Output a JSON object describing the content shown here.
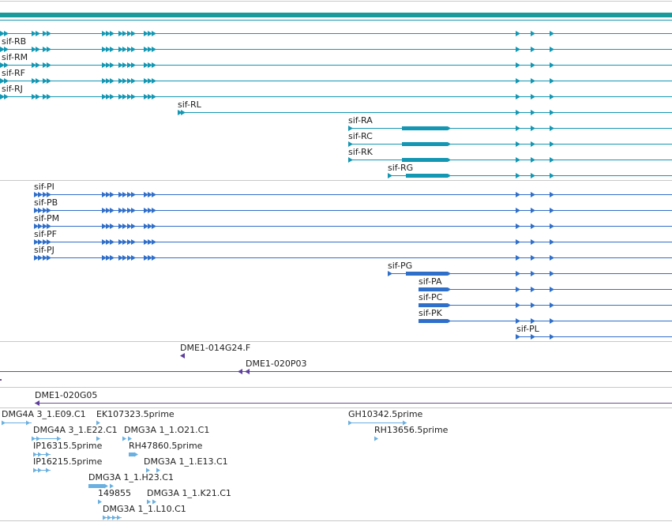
{
  "colors": {
    "band": "#1a9a9a",
    "transcript": "#1397b3",
    "protein": "#2f6fca",
    "bac": "#5f3f9c",
    "bac_line": "#6a4f8c",
    "est": "#6ab0e0",
    "separator": "#c8c8c8",
    "text": "#222222"
  },
  "transcripts": {
    "track_label": "",
    "rows": [
      {
        "label": "",
        "has_label": false
      },
      {
        "label": "sif-RB"
      },
      {
        "label": "sif-RM"
      },
      {
        "label": "sif-RF"
      },
      {
        "label": "sif-RJ"
      },
      {
        "label": "sif-RL"
      },
      {
        "label": "sif-RA"
      },
      {
        "label": "sif-RC"
      },
      {
        "label": "sif-RK"
      },
      {
        "label": "sif-RG"
      }
    ]
  },
  "proteins": {
    "rows": [
      {
        "label": "sif-PI"
      },
      {
        "label": "sif-PB"
      },
      {
        "label": "sif-PM"
      },
      {
        "label": "sif-PF"
      },
      {
        "label": "sif-PJ"
      },
      {
        "label": "sif-PG"
      },
      {
        "label": "sif-PA"
      },
      {
        "label": "sif-PC"
      },
      {
        "label": "sif-PK"
      },
      {
        "label": "sif-PL"
      }
    ]
  },
  "bac_clones": {
    "rows": [
      {
        "label": "DME1-014G24.F"
      },
      {
        "label": "DME1-020P03"
      },
      {
        "label": "DME1-020G05"
      }
    ]
  },
  "ests": {
    "rows": [
      {
        "label": "DMG4A 3_1.E09.C1"
      },
      {
        "label": "EK107323.5prime"
      },
      {
        "label": "GH10342.5prime"
      },
      {
        "label": "DMG4A 3_1.E22.C1"
      },
      {
        "label": "DMG3A 1_1.O21.C1"
      },
      {
        "label": "RH13656.5prime"
      },
      {
        "label": "IP16315.5prime"
      },
      {
        "label": "RH47860.5prime"
      },
      {
        "label": "IP16215.5prime"
      },
      {
        "label": "DMG3A 1_1.E13.C1"
      },
      {
        "label": "DMG3A 1_1.H23.C1"
      },
      {
        "label": "149855"
      },
      {
        "label": "DMG3A 1_1.K21.C1"
      },
      {
        "label": "DMG3A 1_1.L10.C1"
      }
    ]
  }
}
